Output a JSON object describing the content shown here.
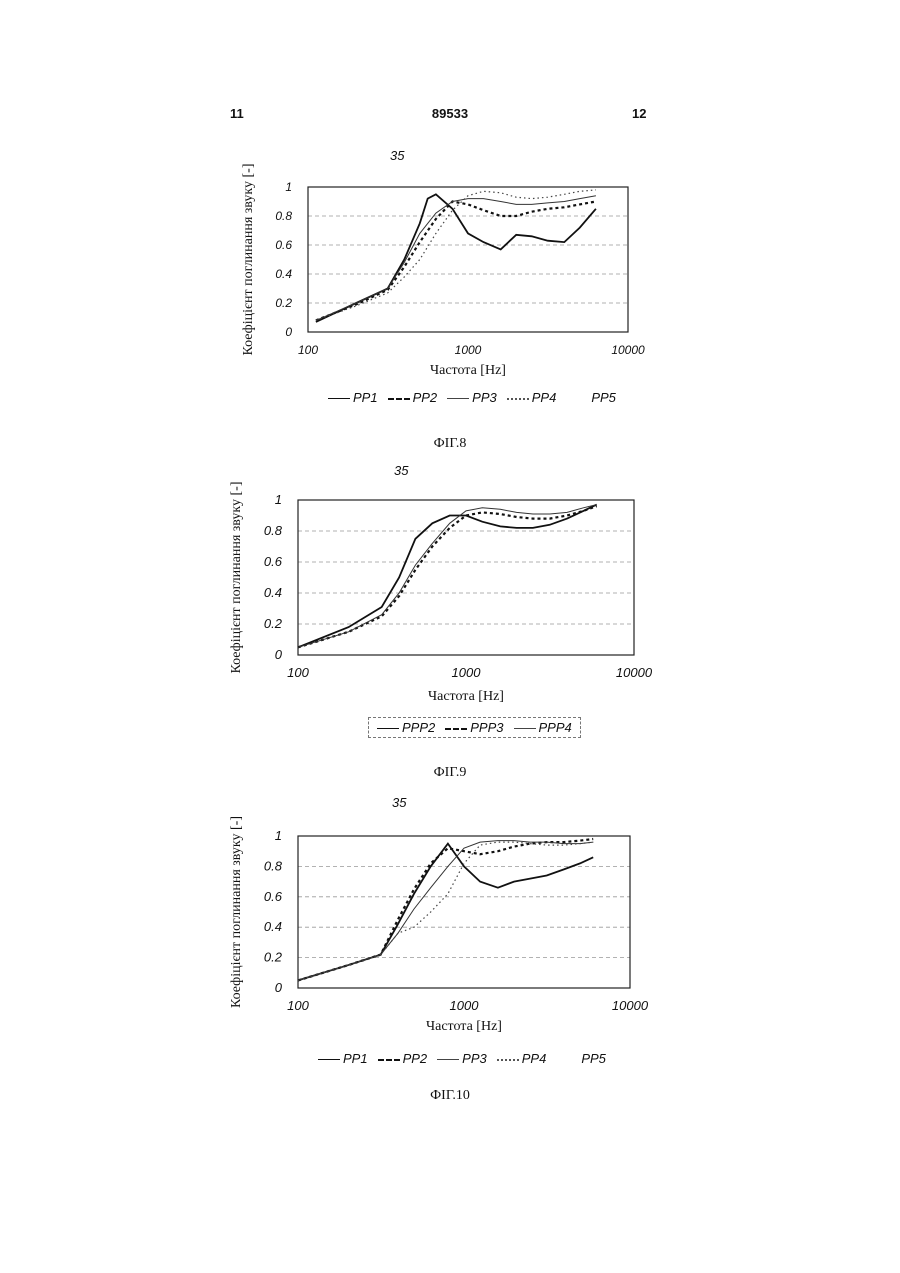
{
  "header": {
    "left": "11",
    "center": "89533",
    "right": "12"
  },
  "chart_data": [
    {
      "type": "line",
      "subtitle": "35",
      "caption": "ФІГ.8",
      "ylabel": "Коефіцієнт поглинання звуку [-]",
      "xlabel": "Частота [Hz]",
      "xscale": "log",
      "xlim": [
        100,
        10000
      ],
      "ylim": [
        0,
        1
      ],
      "xticks": [
        "100",
        "1000",
        "10000"
      ],
      "yticks": [
        "0",
        "0.2",
        "0.4",
        "0.6",
        "0.8",
        "1"
      ],
      "legend_position": "bottom",
      "series": [
        {
          "name": "PP1",
          "style": "solid",
          "x": [
            112,
            200,
            315,
            400,
            500,
            560,
            630,
            800,
            1000,
            1250,
            1600,
            2000,
            2500,
            3150,
            4000,
            5000,
            6300
          ],
          "y": [
            0.07,
            0.2,
            0.3,
            0.5,
            0.75,
            0.92,
            0.95,
            0.85,
            0.68,
            0.62,
            0.57,
            0.67,
            0.66,
            0.63,
            0.62,
            0.72,
            0.85
          ]
        },
        {
          "name": "PP2",
          "style": "dashed",
          "x": [
            112,
            200,
            315,
            400,
            500,
            630,
            800,
            1000,
            1250,
            1600,
            2000,
            2500,
            3150,
            4000,
            5000,
            6300
          ],
          "y": [
            0.08,
            0.19,
            0.29,
            0.45,
            0.62,
            0.78,
            0.9,
            0.88,
            0.84,
            0.8,
            0.8,
            0.83,
            0.85,
            0.86,
            0.88,
            0.9
          ]
        },
        {
          "name": "PP3",
          "style": "solid-thin",
          "x": [
            112,
            200,
            315,
            400,
            500,
            630,
            800,
            1000,
            1250,
            1600,
            2000,
            2500,
            3150,
            4000,
            5000,
            6300
          ],
          "y": [
            0.08,
            0.2,
            0.3,
            0.48,
            0.68,
            0.82,
            0.9,
            0.92,
            0.92,
            0.9,
            0.88,
            0.88,
            0.89,
            0.9,
            0.92,
            0.94
          ]
        },
        {
          "name": "PP4",
          "style": "dotted",
          "x": [
            112,
            200,
            315,
            400,
            500,
            630,
            800,
            1000,
            1250,
            1600,
            2000,
            2500,
            3150,
            4000,
            5000,
            6300
          ],
          "y": [
            0.08,
            0.18,
            0.27,
            0.38,
            0.5,
            0.68,
            0.84,
            0.94,
            0.97,
            0.96,
            0.93,
            0.92,
            0.93,
            0.95,
            0.97,
            0.98
          ]
        },
        {
          "name": "PP5",
          "style": "none"
        }
      ]
    },
    {
      "type": "line",
      "subtitle": "35",
      "caption": "ФІГ.9",
      "ylabel": "Коефіцієнт поглинання звуку [-]",
      "xlabel": "Частота [Hz]",
      "xscale": "log",
      "xlim": [
        100,
        10000
      ],
      "ylim": [
        0,
        1
      ],
      "xticks": [
        "100",
        "1000",
        "10000"
      ],
      "yticks": [
        "0",
        "0.2",
        "0.4",
        "0.6",
        "0.8",
        "1"
      ],
      "legend_position": "bottom",
      "series": [
        {
          "name": "PPP2",
          "style": "solid",
          "x": [
            100,
            200,
            315,
            400,
            500,
            630,
            800,
            1000,
            1250,
            1600,
            2000,
            2500,
            3150,
            4000,
            5000,
            6000
          ],
          "y": [
            0.05,
            0.18,
            0.31,
            0.5,
            0.75,
            0.85,
            0.9,
            0.9,
            0.86,
            0.83,
            0.82,
            0.82,
            0.84,
            0.88,
            0.93,
            0.97
          ]
        },
        {
          "name": "PPP3",
          "style": "dashed",
          "x": [
            100,
            200,
            315,
            400,
            500,
            630,
            800,
            1000,
            1250,
            1600,
            2000,
            2500,
            3150,
            4000,
            5000,
            6000
          ],
          "y": [
            0.05,
            0.15,
            0.25,
            0.38,
            0.55,
            0.7,
            0.82,
            0.9,
            0.92,
            0.91,
            0.89,
            0.88,
            0.88,
            0.9,
            0.93,
            0.96
          ]
        },
        {
          "name": "PPP4",
          "style": "solid-thin",
          "x": [
            100,
            200,
            315,
            400,
            500,
            630,
            800,
            1000,
            1250,
            1600,
            2000,
            2500,
            3150,
            4000,
            5000,
            6000
          ],
          "y": [
            0.05,
            0.15,
            0.26,
            0.4,
            0.58,
            0.72,
            0.85,
            0.93,
            0.95,
            0.94,
            0.92,
            0.91,
            0.91,
            0.92,
            0.95,
            0.97
          ]
        }
      ]
    },
    {
      "type": "line",
      "subtitle": "35",
      "caption": "ФІГ.10",
      "ylabel": "Коефіцієнт поглинання звуку [-]",
      "xlabel": "Частота [Hz]",
      "xscale": "log",
      "xlim": [
        100,
        10000
      ],
      "ylim": [
        0,
        1
      ],
      "xticks": [
        "100",
        "1000",
        "10000"
      ],
      "yticks": [
        "0",
        "0.2",
        "0.4",
        "0.6",
        "0.8",
        "1"
      ],
      "legend_position": "bottom",
      "series": [
        {
          "name": "PP1",
          "style": "solid",
          "x": [
            100,
            200,
            315,
            400,
            500,
            630,
            800,
            1000,
            1250,
            1600,
            2000,
            2500,
            3150,
            4000,
            5000,
            6000
          ],
          "y": [
            0.05,
            0.15,
            0.22,
            0.42,
            0.62,
            0.8,
            0.95,
            0.8,
            0.7,
            0.66,
            0.7,
            0.72,
            0.74,
            0.78,
            0.82,
            0.86
          ]
        },
        {
          "name": "PP2",
          "style": "dashed",
          "x": [
            100,
            200,
            315,
            400,
            500,
            630,
            800,
            1000,
            1250,
            1600,
            2000,
            2500,
            3150,
            4000,
            5000,
            6000
          ],
          "y": [
            0.05,
            0.15,
            0.22,
            0.45,
            0.65,
            0.82,
            0.92,
            0.9,
            0.88,
            0.9,
            0.93,
            0.95,
            0.96,
            0.96,
            0.97,
            0.98
          ]
        },
        {
          "name": "PP3",
          "style": "solid-thin",
          "x": [
            100,
            200,
            315,
            400,
            500,
            630,
            800,
            1000,
            1250,
            1600,
            2000,
            2500,
            3150,
            4000,
            5000,
            6000
          ],
          "y": [
            0.05,
            0.15,
            0.22,
            0.36,
            0.52,
            0.66,
            0.8,
            0.92,
            0.96,
            0.97,
            0.97,
            0.96,
            0.96,
            0.95,
            0.95,
            0.96
          ]
        },
        {
          "name": "PP4",
          "style": "dotted",
          "x": [
            100,
            200,
            315,
            400,
            500,
            630,
            800,
            1000,
            1250,
            1600,
            2000,
            2500,
            3150,
            4000,
            5000,
            6000
          ],
          "y": [
            0.05,
            0.15,
            0.22,
            0.36,
            0.4,
            0.5,
            0.62,
            0.82,
            0.94,
            0.96,
            0.96,
            0.95,
            0.94,
            0.94,
            0.95,
            0.96
          ]
        },
        {
          "name": "PP5",
          "style": "none"
        }
      ]
    }
  ]
}
